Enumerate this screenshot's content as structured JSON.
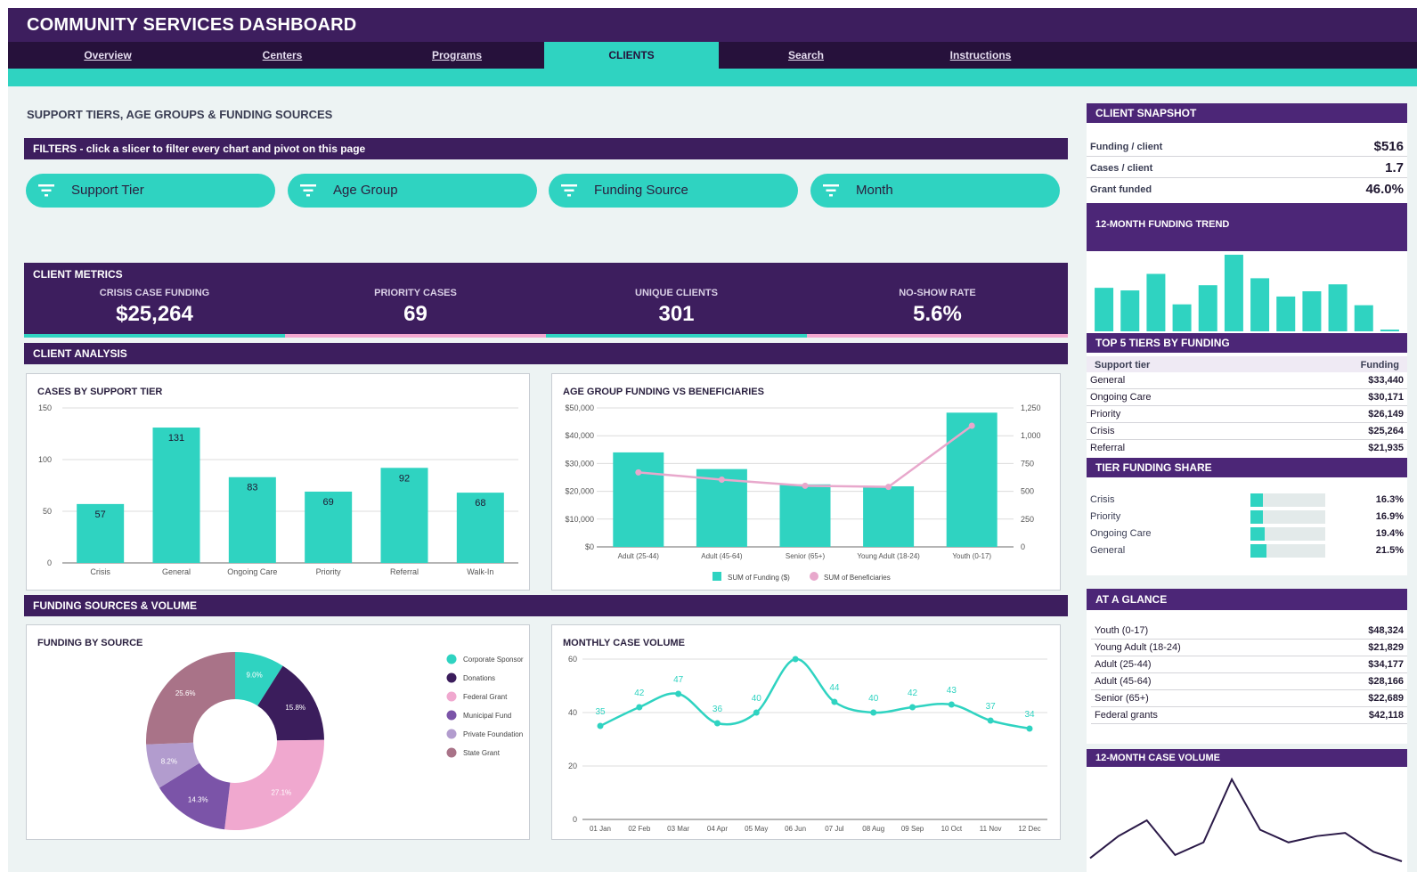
{
  "app": {
    "title": "COMMUNITY SERVICES DASHBOARD"
  },
  "nav": {
    "tabs": [
      {
        "label": "Overview",
        "active": false
      },
      {
        "label": "Centers",
        "active": false
      },
      {
        "label": "Programs",
        "active": false
      },
      {
        "label": "CLIENTS",
        "active": true
      },
      {
        "label": "Search",
        "active": false
      },
      {
        "label": "Instructions",
        "active": false
      }
    ]
  },
  "page": {
    "section_title": "SUPPORT TIERS, AGE GROUPS & FUNDING SOURCES"
  },
  "filters": {
    "header": "FILTERS  -  click a slicer to filter every chart and pivot on this page",
    "slicers": [
      {
        "label": "Support Tier",
        "icon": "filter-icon"
      },
      {
        "label": "Age Group",
        "icon": "filter-icon"
      },
      {
        "label": "Funding Source",
        "icon": "filter-icon"
      },
      {
        "label": "Month",
        "icon": "filter-icon"
      }
    ]
  },
  "metrics": {
    "header": "CLIENT METRICS",
    "items": [
      {
        "label": "CRISIS CASE FUNDING",
        "value": "$25,264",
        "accent": "#2fd3c1"
      },
      {
        "label": "PRIORITY CASES",
        "value": "69",
        "accent": "#f2a7cf"
      },
      {
        "label": "UNIQUE CLIENTS",
        "value": "301",
        "accent": "#2fd3c1"
      },
      {
        "label": "NO-SHOW RATE",
        "value": "5.6%",
        "accent": "#f2a7cf"
      }
    ]
  },
  "analysis": {
    "header": "CLIENT ANALYSIS"
  },
  "funding_section": {
    "header": "FUNDING SOURCES & VOLUME"
  },
  "colors": {
    "teal": "#2fd3c1",
    "purple_dark": "#3d1e5e",
    "purple": "#4c2677",
    "pink": "#f2a7cf"
  },
  "chart_data": [
    {
      "id": "cases-by-tier",
      "type": "bar",
      "title": "CASES BY SUPPORT TIER",
      "categories": [
        "Crisis",
        "General",
        "Ongoing Care",
        "Priority",
        "Referral",
        "Walk-In"
      ],
      "values": [
        57,
        131,
        83,
        69,
        92,
        68
      ],
      "ylim": [
        0,
        150
      ],
      "yticks": [
        0,
        50,
        100,
        150
      ],
      "grid": true,
      "data_labels": true
    },
    {
      "id": "age-funding",
      "type": "bar",
      "title": "AGE GROUP FUNDING VS BENEFICIARIES",
      "categories": [
        "Adult (25-44)",
        "Adult (45-64)",
        "Senior (65+)",
        "Young Adult (18-24)",
        "Youth (0-17)"
      ],
      "series": [
        {
          "name": "SUM of Funding ($)",
          "type": "bar",
          "axis": "left",
          "values": [
            34000,
            28000,
            22500,
            21800,
            48300
          ]
        },
        {
          "name": "SUM of Beneficiaries",
          "type": "line",
          "axis": "right",
          "values": [
            670,
            605,
            550,
            540,
            1090
          ]
        }
      ],
      "ylim_left": [
        0,
        50000
      ],
      "yticks_left": [
        "$0",
        "$10,000",
        "$20,000",
        "$30,000",
        "$40,000",
        "$50,000"
      ],
      "ylim_right": [
        0,
        1250
      ],
      "yticks_right": [
        "0",
        "250",
        "500",
        "750",
        "1,000",
        "1,250"
      ],
      "legend": "bottom"
    },
    {
      "id": "funding-by-source",
      "type": "pie",
      "donut": true,
      "title": "FUNDING BY SOURCE",
      "slices": [
        {
          "label": "Corporate Sponsor",
          "value": 9.0,
          "display": "9.0%",
          "color": "#2fd3c1"
        },
        {
          "label": "Donations",
          "value": 15.8,
          "display": "15.8%",
          "color": "#3b1d5c"
        },
        {
          "label": "Federal Grant",
          "value": 27.1,
          "display": "27.1%",
          "color": "#f0a8cf"
        },
        {
          "label": "Municipal Fund",
          "value": 14.3,
          "display": "14.3%",
          "color": "#7b54a8"
        },
        {
          "label": "Private Foundation",
          "value": 8.2,
          "display": "8.2%",
          "color": "#b29cce"
        },
        {
          "label": "State Grant",
          "value": 25.6,
          "display": "25.6%",
          "color": "#a97388"
        }
      ],
      "legend": "right"
    },
    {
      "id": "monthly-case-volume",
      "type": "line",
      "title": "MONTHLY CASE VOLUME",
      "categories": [
        "01 Jan",
        "02 Feb",
        "03 Mar",
        "04 Apr",
        "05 May",
        "06 Jun",
        "07 Jul",
        "08 Aug",
        "09 Sep",
        "10 Oct",
        "11 Nov",
        "12 Dec"
      ],
      "values": [
        35,
        42,
        47,
        36,
        40,
        60,
        44,
        40,
        42,
        43,
        37,
        34
      ],
      "labels": [
        "35",
        "42",
        "47",
        "36",
        "40",
        "",
        "44",
        "40",
        "42",
        "43",
        "37",
        "34"
      ],
      "ylim": [
        0,
        60
      ],
      "yticks": [
        0,
        20,
        40,
        60
      ],
      "smooth": true
    },
    {
      "id": "funding-trend-12m",
      "type": "bar",
      "title": "12-MONTH FUNDING TREND",
      "values": [
        50,
        47,
        66,
        31,
        53,
        88,
        61,
        40,
        46,
        54,
        30,
        2
      ]
    },
    {
      "id": "case-volume-12m",
      "type": "line",
      "title": "12-MONTH CASE VOLUME",
      "values": [
        35,
        42,
        47,
        36,
        40,
        60,
        44,
        40,
        42,
        43,
        37,
        34
      ]
    }
  ],
  "snapshot": {
    "header": "CLIENT SNAPSHOT",
    "rows": [
      {
        "label": "Funding / client",
        "value": "$516"
      },
      {
        "label": "Cases / client",
        "value": "1.7"
      },
      {
        "label": "Grant funded",
        "value": "46.0%"
      }
    ]
  },
  "trend": {
    "header": "12-MONTH FUNDING TREND"
  },
  "top_tiers": {
    "header": "TOP 5 TIERS BY FUNDING",
    "col_tier": "Support tier",
    "col_funding": "Funding",
    "rows": [
      {
        "tier": "General",
        "funding": "$33,440"
      },
      {
        "tier": "Ongoing Care",
        "funding": "$30,171"
      },
      {
        "tier": "Priority",
        "funding": "$26,149"
      },
      {
        "tier": "Crisis",
        "funding": "$25,264"
      },
      {
        "tier": "Referral",
        "funding": "$21,935"
      }
    ]
  },
  "tier_share": {
    "header": "TIER FUNDING SHARE",
    "rows": [
      {
        "tier": "Crisis",
        "pct": "16.3%",
        "fraction": 0.163
      },
      {
        "tier": "Priority",
        "pct": "16.9%",
        "fraction": 0.169
      },
      {
        "tier": "Ongoing Care",
        "pct": "19.4%",
        "fraction": 0.194
      },
      {
        "tier": "General",
        "pct": "21.5%",
        "fraction": 0.215
      }
    ]
  },
  "glance": {
    "header": "AT A GLANCE",
    "rows": [
      {
        "label": "Youth (0-17)",
        "value": "$48,324"
      },
      {
        "label": "Young Adult (18-24)",
        "value": "$21,829"
      },
      {
        "label": "Adult (25-44)",
        "value": "$34,177"
      },
      {
        "label": "Adult (45-64)",
        "value": "$28,166"
      },
      {
        "label": "Senior (65+)",
        "value": "$22,689"
      },
      {
        "label": "Federal grants",
        "value": "$42,118"
      }
    ]
  },
  "volume12": {
    "header": "12-MONTH CASE VOLUME"
  }
}
